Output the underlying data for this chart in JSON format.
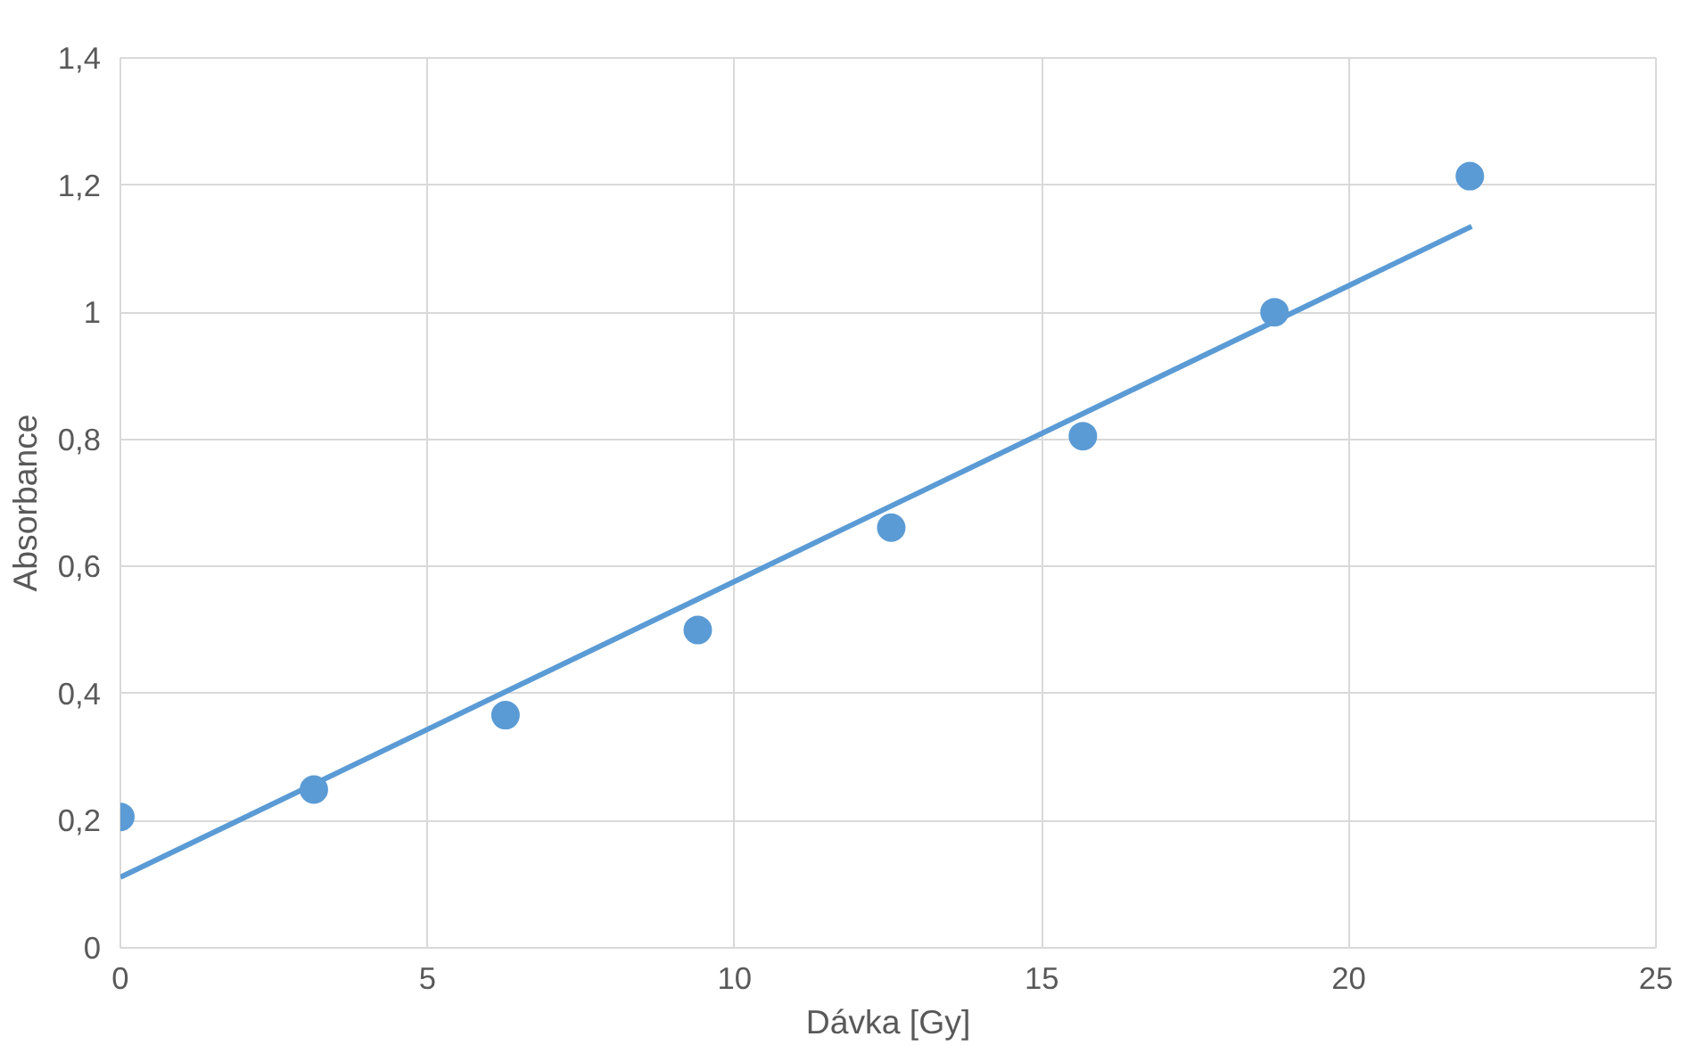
{
  "chart_data": {
    "type": "scatter",
    "xlabel": "Dávka [Gy]",
    "ylabel": "Absorbance",
    "xlim": [
      0,
      25
    ],
    "xticks": [
      0,
      5,
      10,
      15,
      20,
      25
    ],
    "ylim": [
      0,
      1.4
    ],
    "yticks": [
      0,
      {
        "value": 0.2,
        "label": "0,2"
      },
      {
        "value": 0.4,
        "label": "0,4"
      },
      {
        "value": 0.6,
        "label": "0,6"
      },
      {
        "value": 0.8,
        "label": "0,8"
      },
      1,
      {
        "value": 1.2,
        "label": "1,2"
      },
      {
        "value": 1.4,
        "label": "1,4"
      }
    ],
    "grid": true,
    "marker": "circle",
    "series": [
      {
        "color": "#5b9bd5",
        "x": [
          0,
          3.15,
          6.27,
          9.4,
          12.55,
          15.67,
          18.79,
          21.97
        ],
        "values": [
          0.206,
          0.249,
          0.366,
          0.5,
          0.661,
          0.805,
          1.0,
          1.214
        ]
      },
      {
        "type": "line",
        "color": "#5b9bd5",
        "x": [
          0,
          22
        ],
        "values": [
          0.111,
          1.135
        ],
        "marker": "none"
      }
    ]
  }
}
